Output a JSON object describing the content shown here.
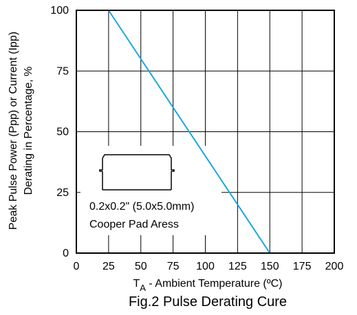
{
  "chart_data": {
    "type": "line",
    "title": "Fig.2 Pulse Derating Cure",
    "xlabel_main": "T",
    "xlabel_sub": "A",
    "xlabel_rest": " - Ambient Temperature (ºC)",
    "ylabel_line1": "Peak Pulse Power (Ppp) or Current (Ipp)",
    "ylabel_line2": "Derating in Percentage, %",
    "x_ticks": [
      "0",
      "25",
      "50",
      "75",
      "100",
      "125",
      "150",
      "175",
      "200"
    ],
    "y_ticks": [
      "0",
      "25",
      "50",
      "75",
      "100"
    ],
    "xlim": [
      0,
      200
    ],
    "ylim": [
      0,
      100
    ],
    "grid": true,
    "annotation": {
      "line1": "0.2x0.2\" (5.0x5.0mm)",
      "line2": "Cooper Pad Aress"
    },
    "series": [
      {
        "x": [
          25,
          150
        ],
        "y": [
          100,
          0
        ],
        "color": "#1aa7d9"
      }
    ]
  }
}
